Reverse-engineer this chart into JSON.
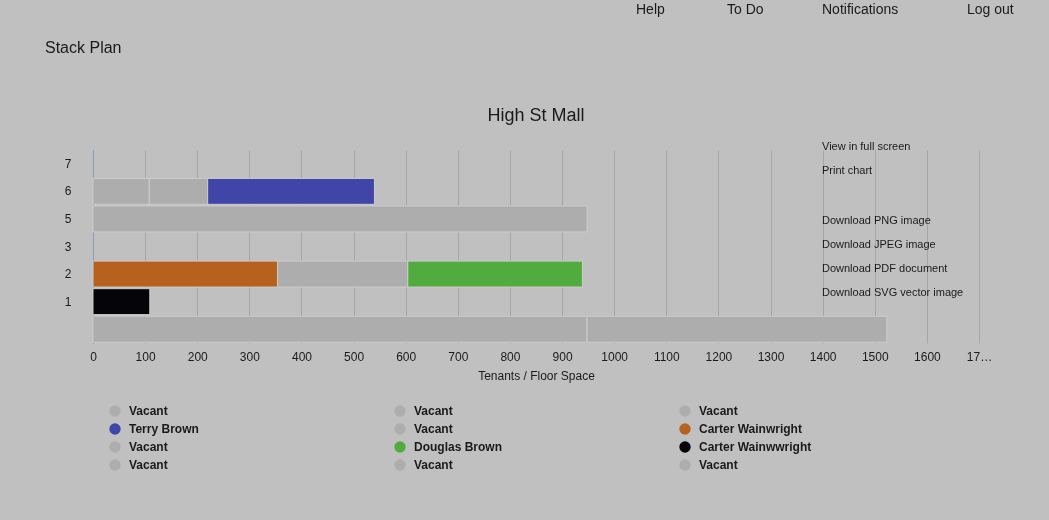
{
  "chart_data": {
    "type": "bar",
    "orientation": "horizontal",
    "stacked": true,
    "title": "High St Mall",
    "xlabel": "Tenants / Floor Space",
    "categories": [
      "7",
      "6",
      "5",
      "3",
      "2",
      "1",
      null
    ],
    "xlim": [
      0,
      1700
    ],
    "xticks": [
      0,
      100,
      200,
      300,
      400,
      500,
      600,
      700,
      800,
      900,
      1000,
      1100,
      1200,
      1300,
      1400,
      1500,
      1600,
      {
        "value": 1700,
        "label": "17…"
      }
    ],
    "grid": "x",
    "legend": "bottom",
    "series": [
      {
        "name": "Vacant",
        "color": "#adadad",
        "values": [
          null,
          108,
          null,
          null,
          null,
          null,
          null
        ]
      },
      {
        "name": "Vacant",
        "color": "#adadad",
        "values": [
          null,
          112,
          null,
          null,
          null,
          null,
          null
        ]
      },
      {
        "name": "Vacant",
        "color": "#adadad",
        "values": [
          null,
          null,
          948,
          null,
          null,
          null,
          null
        ]
      },
      {
        "name": "Terry Brown",
        "color": "#4045a8",
        "values": [
          null,
          320,
          null,
          null,
          null,
          null,
          null
        ]
      },
      {
        "name": "Vacant",
        "color": "#adadad",
        "values": [
          null,
          null,
          null,
          null,
          null,
          null,
          null
        ]
      },
      {
        "name": "Carter Wainwright",
        "color": "#b6611d",
        "values": [
          null,
          null,
          null,
          null,
          354,
          null,
          null
        ]
      },
      {
        "name": "Vacant",
        "color": "#adadad",
        "values": [
          null,
          null,
          null,
          null,
          250,
          null,
          null
        ]
      },
      {
        "name": "Douglas Brown",
        "color": "#51ab3e",
        "values": [
          null,
          null,
          null,
          null,
          335,
          null,
          null
        ]
      },
      {
        "name": "Carter Wainwwright",
        "color": "#050509",
        "values": [
          null,
          null,
          null,
          null,
          null,
          109,
          null
        ]
      },
      {
        "name": "Vacant",
        "color": "#adadad",
        "values": [
          null,
          null,
          null,
          null,
          null,
          null,
          948
        ]
      },
      {
        "name": "Vacant",
        "color": "#adadad",
        "values": [
          null,
          null,
          null,
          null,
          null,
          null,
          575
        ]
      },
      {
        "name": "Vacant",
        "color": "#adadad",
        "values": [
          null,
          null,
          null,
          null,
          null,
          null,
          null
        ]
      }
    ],
    "annotations": [
      "Help",
      "To Do",
      "Notifications",
      "Log out",
      "Stack Plan",
      "View in full screen",
      "Print chart",
      "Download PNG image",
      "Download JPEG image",
      "Download PDF document",
      "Download SVG vector image"
    ]
  }
}
